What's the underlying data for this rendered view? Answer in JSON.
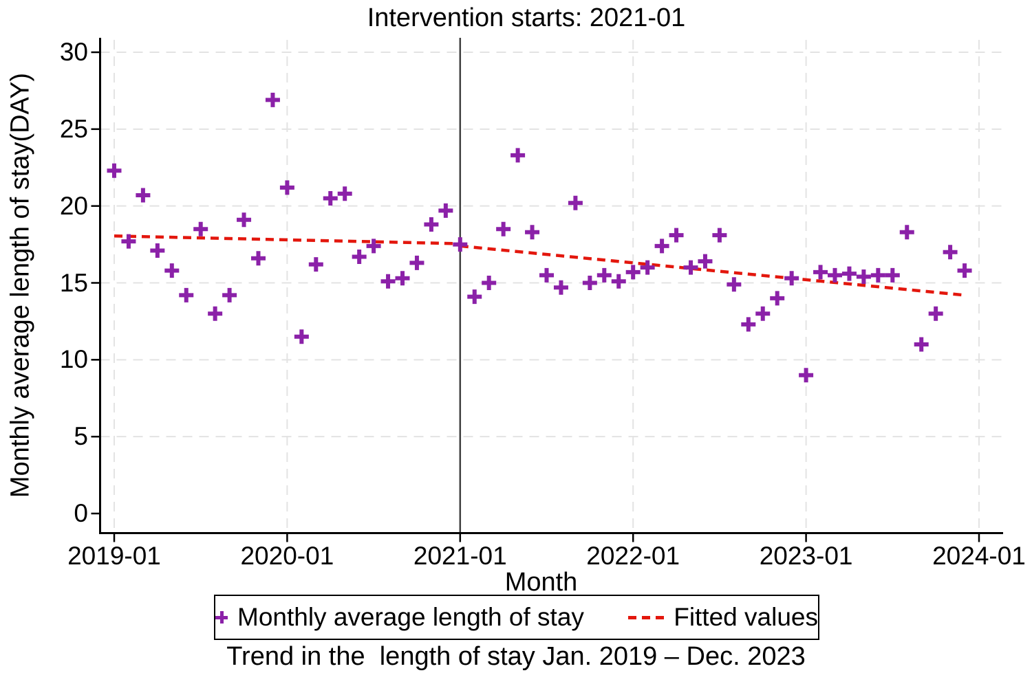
{
  "chart_data": {
    "type": "scatter",
    "title": "Intervention starts: 2021-01",
    "xlabel": "Month",
    "ylabel": "Monthly average length of stay(DAY)",
    "caption": "Trend in the  length of stay Jan. 2019 – Dec. 2023",
    "x_tick_labels": [
      "2019-01",
      "2020-01",
      "2021-01",
      "2022-01",
      "2023-01",
      "2024-01"
    ],
    "y_tick_labels": [
      0,
      5,
      10,
      15,
      20,
      25,
      30
    ],
    "ylim": [
      0,
      30
    ],
    "x_range_months": [
      "2019-01",
      "2024-01"
    ],
    "grid": true,
    "legend_position": "bottom",
    "intervention_month": "2021-01",
    "colors": {
      "marker": "#8b21a8",
      "fitted": "#e3170d",
      "intervention_line": "#3f3f3f",
      "grid": "#e3e3e3",
      "axis": "#000000",
      "text": "#000000"
    },
    "series": [
      {
        "name": "Monthly average length of stay",
        "type": "scatter",
        "marker": "plus",
        "months": [
          "2019-01",
          "2019-02",
          "2019-03",
          "2019-04",
          "2019-05",
          "2019-06",
          "2019-07",
          "2019-08",
          "2019-09",
          "2019-10",
          "2019-11",
          "2019-12",
          "2020-01",
          "2020-02",
          "2020-03",
          "2020-04",
          "2020-05",
          "2020-06",
          "2020-07",
          "2020-08",
          "2020-09",
          "2020-10",
          "2020-11",
          "2020-12",
          "2021-01",
          "2021-02",
          "2021-03",
          "2021-04",
          "2021-05",
          "2021-06",
          "2021-07",
          "2021-08",
          "2021-09",
          "2021-10",
          "2021-11",
          "2021-12",
          "2022-01",
          "2022-02",
          "2022-03",
          "2022-04",
          "2022-05",
          "2022-06",
          "2022-07",
          "2022-08",
          "2022-09",
          "2022-10",
          "2022-11",
          "2022-12",
          "2023-01",
          "2023-02",
          "2023-03",
          "2023-04",
          "2023-05",
          "2023-06",
          "2023-07",
          "2023-08",
          "2023-09",
          "2023-10",
          "2023-11",
          "2023-12"
        ],
        "values": [
          22.3,
          17.7,
          20.7,
          17.1,
          15.8,
          14.2,
          18.5,
          13.0,
          14.2,
          19.1,
          16.6,
          26.9,
          21.2,
          11.5,
          16.2,
          20.5,
          20.8,
          16.7,
          17.4,
          15.1,
          15.3,
          16.3,
          18.8,
          19.7,
          17.5,
          14.1,
          15.0,
          18.5,
          23.3,
          18.3,
          15.5,
          14.7,
          20.2,
          15.0,
          15.5,
          15.1,
          15.7,
          16.0,
          17.4,
          18.1,
          16.0,
          16.4,
          18.1,
          14.9,
          12.3,
          13.0,
          14.0,
          15.3,
          9.0,
          15.7,
          15.5,
          15.6,
          15.4,
          15.5,
          15.5,
          18.3,
          11.0,
          13.0,
          17.0,
          15.8
        ]
      },
      {
        "name": "Fitted values",
        "type": "line",
        "style": "dashed",
        "segments": [
          {
            "x": [
              "2019-01",
              "2021-01"
            ],
            "y": [
              18.05,
              17.55
            ]
          },
          {
            "x": [
              "2021-01",
              "2023-12"
            ],
            "y": [
              17.4,
              14.2
            ]
          }
        ]
      }
    ]
  }
}
